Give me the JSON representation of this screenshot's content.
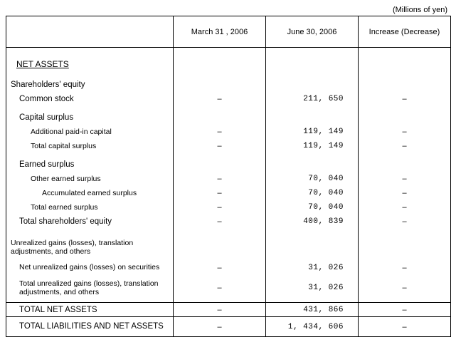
{
  "unit_label": "(Millions of yen)",
  "columns": {
    "c0": "",
    "c1": "March 31 , 2006",
    "c2": "June 30, 2006",
    "c3": "Increase (Decrease)"
  },
  "section_title": "NET ASSETS",
  "rows": {
    "shareholders_equity": "Shareholders' equity",
    "common_stock": "Common stock",
    "common_stock_v": "211, 650",
    "capital_surplus": "Capital surplus",
    "addl_paid_in": "Additional paid-in capital",
    "addl_paid_in_v": "119, 149",
    "total_cap_surplus": "Total capital surplus",
    "total_cap_surplus_v": "119, 149",
    "earned_surplus": "Earned surplus",
    "other_earned": "Other earned surplus",
    "other_earned_v": "70, 040",
    "accum_earned": "Accumulated earned surplus",
    "accum_earned_v": "70, 040",
    "total_earned": "Total earned surplus",
    "total_earned_v": "70, 040",
    "total_sh_equity": "Total shareholders' equity",
    "total_sh_equity_v": "400, 839",
    "unrealized_hdr": "Unrealized gains (losses), translation adjustments, and others",
    "net_unrealized": "Net unrealized gains (losses) on securities",
    "net_unrealized_v": "31, 026",
    "total_unrealized": "Total unrealized gains (losses), translation adjustments, and others",
    "total_unrealized_v": "31, 026",
    "total_net_assets": "TOTAL NET ASSETS",
    "total_net_assets_v": "431, 866",
    "total_liab": "TOTAL LIABILITIES AND NET ASSETS",
    "total_liab_v": "1, 434, 606"
  },
  "dash": "–"
}
